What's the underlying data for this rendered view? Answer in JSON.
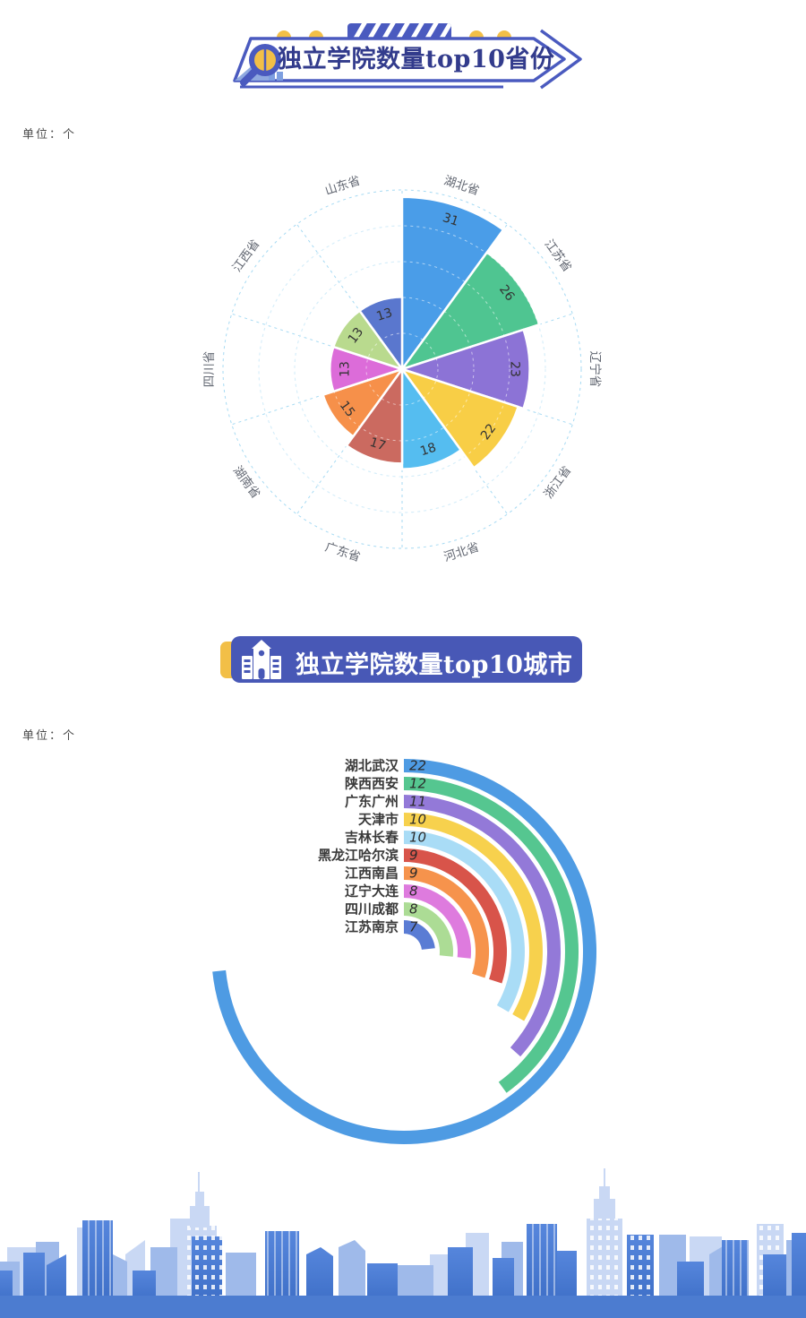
{
  "header1": {
    "title": "独立学院数量top10省份"
  },
  "header2": {
    "title": "独立学院数量top10城市"
  },
  "section1": {
    "unit_label": "单位：个"
  },
  "section2": {
    "unit_label": "单位：个"
  },
  "icons": {
    "header1_icon": "magnifier-over-bar-chart-icon",
    "header2_icon": "school-building-icon",
    "footer": "city-skyline-illustration"
  },
  "colors": {
    "banner_indigo": "#4A5ABF",
    "banner_fill": "#ffffff",
    "header2_bg": "#4858B6",
    "accent_yellow": "#F2BF47",
    "grid_blue": "#A6DAF3",
    "title1_text": "#323B8C",
    "skyline_front": "#4C7CD0",
    "skyline_mid": "#9FBAEA",
    "skyline_back": "#C9D8F4"
  },
  "chart_data": [
    {
      "type": "bar",
      "subtype": "nightingale-rose-polar",
      "title": "独立学院数量top10省份",
      "unit": "个",
      "categories": [
        "湖北省",
        "江苏省",
        "辽宁省",
        "浙江省",
        "河北省",
        "广东省",
        "湖南省",
        "四川省",
        "江西省",
        "山东省"
      ],
      "values": [
        31,
        26,
        23,
        22,
        18,
        17,
        15,
        13,
        13,
        13
      ],
      "colors": [
        "#4A9DE8",
        "#4FC591",
        "#8C73D6",
        "#F8CE46",
        "#55BDF0",
        "#CB6A60",
        "#F6904A",
        "#DC6CD9",
        "#B9DA8E",
        "#5A77CE"
      ],
      "sector_angle_deg": 36,
      "start_angle": "12-oclock-clockwise",
      "grid": "dashed concentric circles and radial lines",
      "value_labels": "shown inside sectors near outer edge",
      "category_labels": "shown outside grid, rotated tangentially"
    },
    {
      "type": "bar",
      "subtype": "radial-concentric-arcs",
      "title": "独立学院数量top10城市",
      "unit": "个",
      "categories": [
        "湖北武汉",
        "陕西西安",
        "广东广州",
        "天津市",
        "吉林长春",
        "黑龙江哈尔滨",
        "江西南昌",
        "辽宁大连",
        "四川成都",
        "江苏南京"
      ],
      "values": [
        22,
        12,
        11,
        10,
        10,
        9,
        9,
        8,
        8,
        7
      ],
      "colors": [
        "#4E9BE3",
        "#55C690",
        "#9379D8",
        "#F7D14D",
        "#A9DCF6",
        "#D8544A",
        "#F6934C",
        "#DE7BDE",
        "#ACDC95",
        "#5A7CD4"
      ],
      "degrees_per_unit": 12,
      "start_angle": "12-oclock-clockwise",
      "value_labels": "shown at arc start next to category name",
      "category_labels": "right-aligned column at top of circle"
    }
  ]
}
